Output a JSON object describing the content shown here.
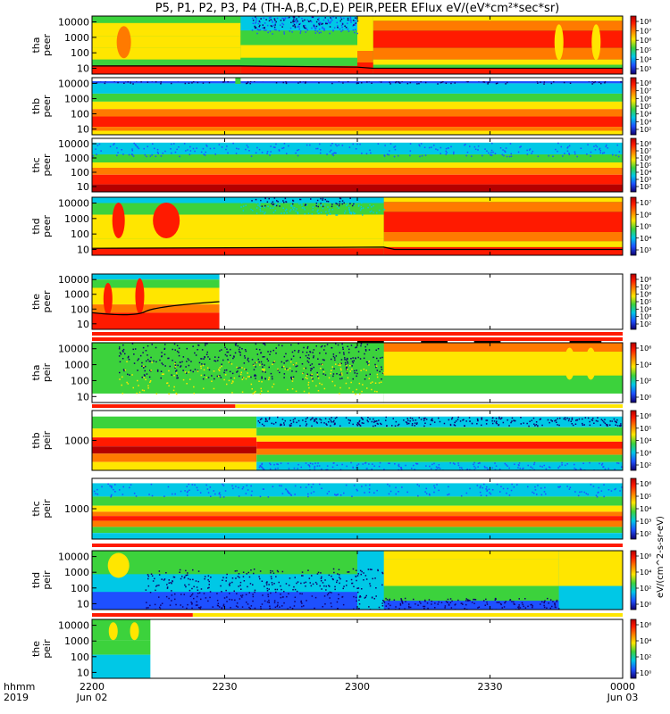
{
  "title": "P5, P1, P2, P3, P4 (TH-A,B,C,D,E) PEIR,PEER EFlux eV/(eV*cm²*sec*sr)",
  "colorbar_title": "eV/(cm^2-s-sr-eV)",
  "colors": {
    "dark_red": "#b40000",
    "red": "#ff1a00",
    "orange": "#ff7a00",
    "yellow": "#ffe600",
    "green": "#3cd23c",
    "cyan": "#00c8e6",
    "blue": "#1e50ff",
    "navy": "#10006e",
    "black": "#000000"
  },
  "x_axis": {
    "row_label_1": "hhmm",
    "row_label_2": "2019",
    "ticks": [
      {
        "time": "2200",
        "date": "Jun 02",
        "frac": 0.0
      },
      {
        "time": "2230",
        "date": "",
        "frac": 0.25
      },
      {
        "time": "2300",
        "date": "",
        "frac": 0.5
      },
      {
        "time": "2330",
        "date": "",
        "frac": 0.75
      },
      {
        "time": "0000",
        "date": "Jun 03",
        "frac": 1.0
      }
    ]
  },
  "chart_data": {
    "type": "heatmap",
    "x_range": [
      "2019-06-02 22:00",
      "2019-06-03 00:00"
    ],
    "y_scale": "log",
    "y_unit": "eV",
    "panels": [
      {
        "id": "tha_peer",
        "label": [
          "tha",
          "peer"
        ],
        "yticks": [
          "10000",
          "1000",
          "100",
          "10"
        ],
        "cb_labels": [
          "10⁸",
          "10⁷",
          "10⁶",
          "10⁵",
          "10⁴",
          "10³"
        ],
        "data_end": 1.0
      },
      {
        "id": "thb_peer",
        "label": [
          "thb",
          "peer"
        ],
        "yticks": [
          "10000",
          "1000",
          "100",
          "10"
        ],
        "cb_labels": [
          "10⁸",
          "10⁷",
          "10⁶",
          "10⁵",
          "10⁴",
          "10³",
          "10²"
        ],
        "data_end": 1.0
      },
      {
        "id": "thc_peer",
        "label": [
          "thc",
          "peer"
        ],
        "yticks": [
          "10000",
          "1000",
          "100",
          "10"
        ],
        "cb_labels": [
          "10⁸",
          "10⁷",
          "10⁶",
          "10⁵",
          "10⁴",
          "10³",
          "10²"
        ],
        "data_end": 1.0
      },
      {
        "id": "thd_peer",
        "label": [
          "thd",
          "peer"
        ],
        "yticks": [
          "10000",
          "1000",
          "100",
          "10"
        ],
        "cb_labels": [
          "10⁷",
          "10⁶",
          "10⁵",
          "10⁴",
          "10³"
        ],
        "data_end": 1.0
      },
      {
        "id": "the_peer",
        "label": [
          "the",
          "peer"
        ],
        "yticks": [
          "10000",
          "1000",
          "100",
          "10"
        ],
        "cb_labels": [
          "10⁸",
          "10⁷",
          "10⁶",
          "10⁵",
          "10⁴",
          "10³",
          "10²"
        ],
        "data_end": 0.24
      },
      {
        "id": "tha_peir",
        "label": [
          "tha",
          "peir"
        ],
        "yticks": [
          "10000",
          "1000",
          "100",
          "10"
        ],
        "cb_labels": [
          "10⁶",
          "10⁴",
          "10²",
          "10⁰"
        ],
        "data_end": 1.0
      },
      {
        "id": "thb_peir",
        "label": [
          "thb",
          "peir"
        ],
        "yticks": [
          "1000"
        ],
        "cb_labels": [
          "10⁶",
          "10⁵",
          "10⁴",
          "10³",
          "10²"
        ],
        "data_end": 1.0
      },
      {
        "id": "thc_peir",
        "label": [
          "thc",
          "peir"
        ],
        "yticks": [
          "1000"
        ],
        "cb_labels": [
          "10⁶",
          "10⁵",
          "10⁴",
          "10³",
          "10²"
        ],
        "data_end": 1.0
      },
      {
        "id": "thd_peir",
        "label": [
          "thd",
          "peir"
        ],
        "yticks": [
          "10000",
          "1000",
          "100",
          "10"
        ],
        "cb_labels": [
          "10⁶",
          "10⁴",
          "10²",
          "10⁰"
        ],
        "data_end": 1.0
      },
      {
        "id": "the_peir",
        "label": [
          "the",
          "peir"
        ],
        "yticks": [
          "10000",
          "1000",
          "100",
          "10"
        ],
        "cb_labels": [
          "10⁶",
          "10⁴",
          "10²",
          "10⁰"
        ],
        "data_end": 0.11
      }
    ]
  }
}
